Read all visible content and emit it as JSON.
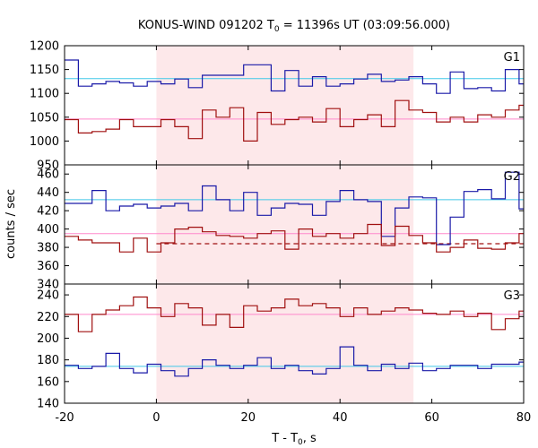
{
  "chart_data": {
    "type": "line",
    "title": {
      "main": "KONUS-WIND 091202 T",
      "sub": "0",
      "rest": " = 11396s UT (03:09:56.000)"
    },
    "xlabel": {
      "main": "T - T",
      "sub": "0",
      "rest": ", s"
    },
    "ylabel": "counts / sec",
    "xlim": [
      -20,
      80
    ],
    "x_ticks": [
      -20,
      0,
      20,
      40,
      60,
      80
    ],
    "highlight_interval": [
      0,
      56
    ],
    "colors": {
      "blue": "#1a1aa8",
      "red": "#a01010",
      "blue_mean": "#40c8e8",
      "red_mean": "#ff88cc",
      "highlight": "#fde8ea"
    },
    "panels": [
      {
        "name": "G1",
        "ylim": [
          950,
          1200
        ],
        "y_ticks": [
          950,
          1000,
          1050,
          1100,
          1150,
          1200
        ],
        "mean_blue": 1131,
        "mean_red": 1046,
        "series": [
          {
            "name": "",
            "color": "blue",
            "x": [
              -20,
              -17,
              -14,
              -11,
              -8,
              -5,
              -2,
              1,
              4,
              7,
              10,
              13,
              16,
              19,
              22,
              25,
              28,
              31,
              34,
              37,
              40,
              43,
              46,
              49,
              52,
              55,
              58,
              61,
              64,
              67,
              70,
              73,
              76,
              79
            ],
            "y": [
              1170,
              1115,
              1120,
              1125,
              1122,
              1115,
              1125,
              1120,
              1130,
              1112,
              1138,
              1138,
              1138,
              1160,
              1160,
              1105,
              1148,
              1115,
              1135,
              1115,
              1120,
              1130,
              1140,
              1125,
              1128,
              1135,
              1120,
              1100,
              1145,
              1110,
              1112,
              1105,
              1150,
              1120
            ]
          },
          {
            "name": "",
            "color": "red",
            "x": [
              -20,
              -17,
              -14,
              -11,
              -8,
              -5,
              -2,
              1,
              4,
              7,
              10,
              13,
              16,
              19,
              22,
              25,
              28,
              31,
              34,
              37,
              40,
              43,
              46,
              49,
              52,
              55,
              58,
              61,
              64,
              67,
              70,
              73,
              76,
              79
            ],
            "y": [
              1045,
              1017,
              1020,
              1025,
              1045,
              1030,
              1030,
              1045,
              1030,
              1005,
              1065,
              1050,
              1070,
              1000,
              1060,
              1035,
              1045,
              1050,
              1040,
              1068,
              1030,
              1045,
              1055,
              1030,
              1085,
              1065,
              1060,
              1040,
              1050,
              1040,
              1055,
              1050,
              1065,
              1075
            ]
          }
        ]
      },
      {
        "name": "G2",
        "ylim": [
          340,
          470
        ],
        "y_ticks": [
          340,
          360,
          380,
          400,
          420,
          440,
          460
        ],
        "mean_blue": 432,
        "mean_red": 395,
        "dashed_level": 384,
        "series": [
          {
            "name": "",
            "color": "blue",
            "x": [
              -20,
              -17,
              -14,
              -11,
              -8,
              -5,
              -2,
              1,
              4,
              7,
              10,
              13,
              16,
              19,
              22,
              25,
              28,
              31,
              34,
              37,
              40,
              43,
              46,
              49,
              52,
              55,
              58,
              61,
              64,
              67,
              70,
              73,
              76,
              79
            ],
            "y": [
              428,
              428,
              442,
              420,
              425,
              427,
              423,
              425,
              428,
              420,
              447,
              432,
              420,
              440,
              415,
              423,
              428,
              427,
              415,
              430,
              442,
              432,
              430,
              392,
              423,
              435,
              434,
              383,
              413,
              441,
              443,
              433,
              462,
              422
            ]
          },
          {
            "name": "",
            "color": "red",
            "x": [
              -20,
              -17,
              -14,
              -11,
              -8,
              -5,
              -2,
              1,
              4,
              7,
              10,
              13,
              16,
              19,
              22,
              25,
              28,
              31,
              34,
              37,
              40,
              43,
              46,
              49,
              52,
              55,
              58,
              61,
              64,
              67,
              70,
              73,
              76,
              79
            ],
            "y": [
              392,
              388,
              385,
              385,
              375,
              390,
              375,
              385,
              400,
              402,
              397,
              393,
              392,
              390,
              395,
              398,
              378,
              400,
              392,
              395,
              390,
              395,
              405,
              382,
              403,
              393,
              385,
              375,
              380,
              388,
              379,
              378,
              385,
              395
            ]
          }
        ]
      },
      {
        "name": "G3",
        "ylim": [
          140,
          250
        ],
        "y_ticks": [
          140,
          160,
          180,
          200,
          220,
          240
        ],
        "mean_blue": 174,
        "mean_red": 222,
        "series": [
          {
            "name": "",
            "color": "blue",
            "x": [
              -20,
              -17,
              -14,
              -11,
              -8,
              -5,
              -2,
              1,
              4,
              7,
              10,
              13,
              16,
              19,
              22,
              25,
              28,
              31,
              34,
              37,
              40,
              43,
              46,
              49,
              52,
              55,
              58,
              61,
              64,
              67,
              70,
              73,
              76,
              79
            ],
            "y": [
              175,
              172,
              174,
              186,
              172,
              168,
              176,
              170,
              165,
              172,
              180,
              175,
              172,
              175,
              182,
              172,
              175,
              170,
              167,
              172,
              192,
              175,
              170,
              176,
              172,
              177,
              170,
              172,
              175,
              175,
              172,
              176,
              176,
              178
            ]
          },
          {
            "name": "",
            "color": "red",
            "x": [
              -20,
              -17,
              -14,
              -11,
              -8,
              -5,
              -2,
              1,
              4,
              7,
              10,
              13,
              16,
              19,
              22,
              25,
              28,
              31,
              34,
              37,
              40,
              43,
              46,
              49,
              52,
              55,
              58,
              61,
              64,
              67,
              70,
              73,
              76,
              79
            ],
            "y": [
              222,
              206,
              222,
              226,
              230,
              238,
              228,
              220,
              232,
              228,
              212,
              222,
              210,
              230,
              225,
              228,
              236,
              230,
              232,
              228,
              220,
              228,
              222,
              225,
              228,
              226,
              223,
              222,
              225,
              220,
              223,
              208,
              218,
              225
            ]
          }
        ]
      }
    ]
  }
}
